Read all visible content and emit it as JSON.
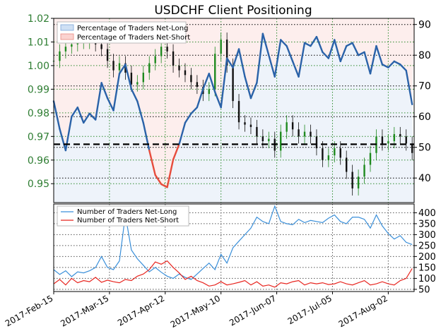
{
  "chart_data": [
    {
      "type": "line",
      "title": "USDCHF Client Positioning",
      "x_tick_labels": [
        "2017-Feb-15",
        "2017-Mar-15",
        "2017-Apr-12",
        "2017-May-10",
        "2017-Jun-07",
        "2017-Jul-05",
        "2017-Aug-02"
      ],
      "x_range": [
        "2017-02-15",
        "2017-08-15"
      ],
      "left_axis": {
        "ylim": [
          0.942,
          1.02
        ],
        "ticks": [
          "1.02",
          "1.01",
          "1.00",
          "0.99",
          "0.98",
          "0.97",
          "0.96",
          "0.95"
        ]
      },
      "right_axis": {
        "ylim": [
          32,
          92
        ],
        "ticks": [
          "90",
          "80",
          "70",
          "60",
          "50",
          "40"
        ]
      },
      "reference_line": {
        "axis": "right",
        "value": 51
      },
      "legend": {
        "position": "top-left",
        "entries": [
          "Percentage of Traders Net-Long",
          "Percentage of Traders Net-Short"
        ]
      },
      "grid": true,
      "series": [
        {
          "name": "Percentage of Traders Net-Long",
          "axis": "right",
          "x": [
            "2017-02-15",
            "2017-02-18",
            "2017-02-21",
            "2017-02-24",
            "2017-02-27",
            "2017-03-02",
            "2017-03-05",
            "2017-03-08",
            "2017-03-11",
            "2017-03-14",
            "2017-03-17",
            "2017-03-20",
            "2017-03-23",
            "2017-03-26",
            "2017-03-29",
            "2017-04-01",
            "2017-04-04",
            "2017-04-07",
            "2017-04-10",
            "2017-04-13",
            "2017-04-16",
            "2017-04-19",
            "2017-04-22",
            "2017-04-25",
            "2017-04-28",
            "2017-05-01",
            "2017-05-04",
            "2017-05-07",
            "2017-05-10",
            "2017-05-13",
            "2017-05-16",
            "2017-05-19",
            "2017-05-22",
            "2017-05-25",
            "2017-05-28",
            "2017-05-31",
            "2017-06-03",
            "2017-06-06",
            "2017-06-09",
            "2017-06-12",
            "2017-06-15",
            "2017-06-18",
            "2017-06-21",
            "2017-06-24",
            "2017-06-27",
            "2017-06-30",
            "2017-07-03",
            "2017-07-06",
            "2017-07-09",
            "2017-07-12",
            "2017-07-15",
            "2017-07-18",
            "2017-07-21",
            "2017-07-24",
            "2017-07-27",
            "2017-07-30",
            "2017-08-02",
            "2017-08-05",
            "2017-08-08",
            "2017-08-11",
            "2017-08-14"
          ],
          "values": [
            65,
            56,
            49,
            60,
            63,
            58,
            61,
            59,
            71,
            66,
            62,
            74,
            77,
            69,
            65,
            58,
            49,
            41,
            38,
            37,
            46,
            51,
            58,
            61,
            63,
            69,
            74,
            68,
            63,
            79,
            76,
            82,
            73,
            66,
            71,
            87,
            80,
            73,
            85,
            83,
            78,
            73,
            84,
            83,
            86,
            81,
            79,
            85,
            78,
            83,
            84,
            80,
            81,
            74,
            83,
            77,
            76,
            78,
            77,
            75,
            64
          ]
        },
        {
          "name": "Percentage of Traders Net-Short",
          "axis": "right",
          "color": "#e74c3c"
        },
        {
          "name": "USDCHF",
          "type": "candlestick",
          "axis": "left",
          "x": [
            "2017-02-15",
            "2017-02-18",
            "2017-02-21",
            "2017-02-24",
            "2017-02-27",
            "2017-03-02",
            "2017-03-05",
            "2017-03-08",
            "2017-03-11",
            "2017-03-14",
            "2017-03-17",
            "2017-03-20",
            "2017-03-23",
            "2017-03-26",
            "2017-03-29",
            "2017-04-01",
            "2017-04-04",
            "2017-04-07",
            "2017-04-10",
            "2017-04-13",
            "2017-04-16",
            "2017-04-19",
            "2017-04-22",
            "2017-04-25",
            "2017-04-28",
            "2017-05-01",
            "2017-05-04",
            "2017-05-07",
            "2017-05-10",
            "2017-05-13",
            "2017-05-16",
            "2017-05-19",
            "2017-05-22",
            "2017-05-25",
            "2017-05-28",
            "2017-05-31",
            "2017-06-03",
            "2017-06-06",
            "2017-06-09",
            "2017-06-12",
            "2017-06-15",
            "2017-06-18",
            "2017-06-21",
            "2017-06-24",
            "2017-06-27",
            "2017-06-30",
            "2017-07-03",
            "2017-07-06",
            "2017-07-09",
            "2017-07-12",
            "2017-07-15",
            "2017-07-18",
            "2017-07-21",
            "2017-07-24",
            "2017-07-27",
            "2017-07-30",
            "2017-08-02",
            "2017-08-05",
            "2017-08-08",
            "2017-08-11",
            "2017-08-14"
          ],
          "values": [
            1.002,
            1.006,
            1.008,
            1.009,
            1.01,
            1.01,
            1.012,
            1.009,
            1.007,
            1.002,
            0.998,
            1.001,
            0.997,
            0.992,
            0.993,
            0.997,
            1.001,
            1.004,
            1.008,
            1.006,
            1.0,
            0.998,
            0.996,
            0.993,
            0.991,
            0.988,
            0.99,
            1.005,
            1.011,
            1.0,
            0.985,
            0.976,
            0.975,
            0.974,
            0.97,
            0.968,
            0.969,
            0.964,
            0.972,
            0.976,
            0.973,
            0.97,
            0.972,
            0.97,
            0.965,
            0.96,
            0.962,
            0.965,
            0.961,
            0.955,
            0.948,
            0.953,
            0.958,
            0.963,
            0.97,
            0.967,
            0.968,
            0.971,
            0.97,
            0.967,
            0.963
          ]
        }
      ]
    },
    {
      "type": "line",
      "x_range": [
        "2017-02-15",
        "2017-08-15"
      ],
      "y_axis": {
        "ylim": [
          40,
          440
        ],
        "ticks": [
          "400",
          "350",
          "300",
          "250",
          "200",
          "150",
          "100",
          "50"
        ]
      },
      "legend": {
        "position": "top-left",
        "entries": [
          "Number of Traders Net-Long",
          "Number of Traders Net-Short"
        ]
      },
      "grid": true,
      "series": [
        {
          "name": "Number of Traders Net-Long",
          "color": "#3a8fd9",
          "x": [
            "2017-02-15",
            "2017-02-18",
            "2017-02-21",
            "2017-02-24",
            "2017-02-27",
            "2017-03-02",
            "2017-03-05",
            "2017-03-08",
            "2017-03-11",
            "2017-03-14",
            "2017-03-17",
            "2017-03-20",
            "2017-03-23",
            "2017-03-26",
            "2017-03-29",
            "2017-04-01",
            "2017-04-04",
            "2017-04-07",
            "2017-04-10",
            "2017-04-13",
            "2017-04-16",
            "2017-04-19",
            "2017-04-22",
            "2017-04-25",
            "2017-04-28",
            "2017-05-01",
            "2017-05-04",
            "2017-05-07",
            "2017-05-10",
            "2017-05-13",
            "2017-05-16",
            "2017-05-19",
            "2017-05-22",
            "2017-05-25",
            "2017-05-28",
            "2017-05-31",
            "2017-06-03",
            "2017-06-06",
            "2017-06-09",
            "2017-06-12",
            "2017-06-15",
            "2017-06-18",
            "2017-06-21",
            "2017-06-24",
            "2017-06-27",
            "2017-06-30",
            "2017-07-03",
            "2017-07-06",
            "2017-07-09",
            "2017-07-12",
            "2017-07-15",
            "2017-07-18",
            "2017-07-21",
            "2017-07-24",
            "2017-07-27",
            "2017-07-30",
            "2017-08-02",
            "2017-08-05",
            "2017-08-08",
            "2017-08-11",
            "2017-08-14"
          ],
          "values": [
            140,
            118,
            135,
            108,
            130,
            125,
            135,
            150,
            200,
            150,
            140,
            180,
            390,
            230,
            190,
            160,
            130,
            150,
            128,
            110,
            100,
            120,
            105,
            95,
            120,
            145,
            170,
            140,
            210,
            170,
            240,
            270,
            300,
            330,
            380,
            360,
            350,
            430,
            360,
            350,
            345,
            370,
            355,
            365,
            360,
            355,
            375,
            390,
            360,
            350,
            380,
            380,
            370,
            330,
            390,
            340,
            305,
            280,
            295,
            265,
            255
          ]
        },
        {
          "name": "Number of Traders Net-Short",
          "color": "#e8251f",
          "x": [
            "2017-02-15",
            "2017-02-18",
            "2017-02-21",
            "2017-02-24",
            "2017-02-27",
            "2017-03-02",
            "2017-03-05",
            "2017-03-08",
            "2017-03-11",
            "2017-03-14",
            "2017-03-17",
            "2017-03-20",
            "2017-03-23",
            "2017-03-26",
            "2017-03-29",
            "2017-04-01",
            "2017-04-04",
            "2017-04-07",
            "2017-04-10",
            "2017-04-13",
            "2017-04-16",
            "2017-04-19",
            "2017-04-22",
            "2017-04-25",
            "2017-04-28",
            "2017-05-01",
            "2017-05-04",
            "2017-05-07",
            "2017-05-10",
            "2017-05-13",
            "2017-05-16",
            "2017-05-19",
            "2017-05-22",
            "2017-05-25",
            "2017-05-28",
            "2017-05-31",
            "2017-06-03",
            "2017-06-06",
            "2017-06-09",
            "2017-06-12",
            "2017-06-15",
            "2017-06-18",
            "2017-06-21",
            "2017-06-24",
            "2017-06-27",
            "2017-06-30",
            "2017-07-03",
            "2017-07-06",
            "2017-07-09",
            "2017-07-12",
            "2017-07-15",
            "2017-07-18",
            "2017-07-21",
            "2017-07-24",
            "2017-07-27",
            "2017-07-30",
            "2017-08-02",
            "2017-08-05",
            "2017-08-08",
            "2017-08-11",
            "2017-08-14"
          ],
          "values": [
            75,
            95,
            70,
            100,
            80,
            90,
            85,
            105,
            82,
            92,
            85,
            80,
            95,
            90,
            110,
            120,
            140,
            175,
            165,
            180,
            150,
            125,
            95,
            110,
            90,
            80,
            65,
            70,
            85,
            70,
            75,
            82,
            90,
            70,
            85,
            65,
            70,
            60,
            80,
            75,
            85,
            90,
            70,
            80,
            75,
            80,
            72,
            75,
            85,
            75,
            70,
            80,
            90,
            70,
            75,
            85,
            75,
            70,
            90,
            100,
            145
          ]
        }
      ]
    }
  ]
}
